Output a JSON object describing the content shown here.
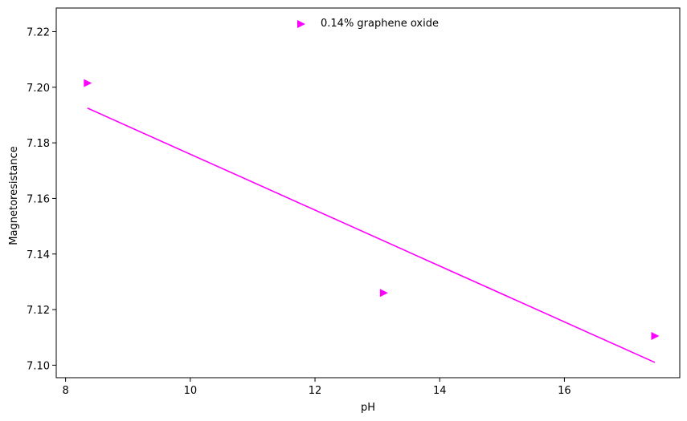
{
  "chart_data": {
    "type": "scatter",
    "title": "",
    "xlabel": "pH",
    "ylabel": "Magnetoresistance",
    "xlim": [
      7.85,
      17.85
    ],
    "ylim": [
      7.0955,
      7.2285
    ],
    "xticks": [
      8,
      10,
      12,
      14,
      16
    ],
    "xtick_labels": [
      "8",
      "10",
      "12",
      "14",
      "16"
    ],
    "yticks": [
      7.1,
      7.12,
      7.14,
      7.16,
      7.18,
      7.2,
      7.22
    ],
    "ytick_labels": [
      "7.10",
      "7.12",
      "7.14",
      "7.16",
      "7.18",
      "7.20",
      "7.22"
    ],
    "grid": false,
    "legend_position": "top-center",
    "series": [
      {
        "name": "0.14% graphene oxide",
        "color": "#ff00ff",
        "marker": "triangle-right",
        "x": [
          8.35,
          13.1,
          17.45
        ],
        "y": [
          7.2015,
          7.126,
          7.1105
        ]
      }
    ],
    "fit_line": {
      "color": "#ff00ff",
      "x": [
        8.35,
        17.45
      ],
      "y": [
        7.1925,
        7.101
      ]
    }
  }
}
